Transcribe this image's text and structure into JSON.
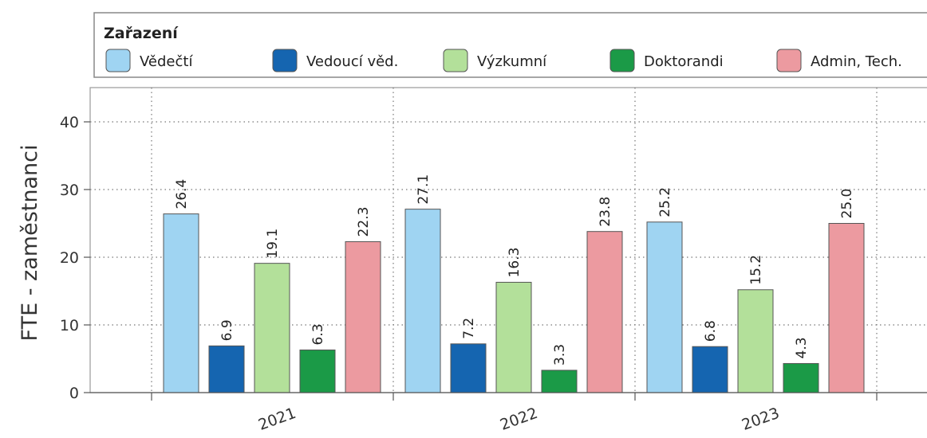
{
  "chart_data": {
    "type": "bar",
    "categories": [
      "2021",
      "2022",
      "2023"
    ],
    "ylabel": "FTE - zaměstnanci",
    "ylim": [
      0,
      45
    ],
    "yticks": [
      0,
      10,
      20,
      30,
      40
    ],
    "grid": true,
    "legend": {
      "title": "Zařazení",
      "placement": "top"
    },
    "series": [
      {
        "name": "Vědečtí",
        "color": "#9fd4f2",
        "values": [
          26.4,
          27.1,
          25.2
        ],
        "labels": [
          "26.4",
          "27.1",
          "25.2"
        ]
      },
      {
        "name": "Vedoucí věd.",
        "color": "#1565b0",
        "values": [
          6.9,
          7.2,
          6.8
        ],
        "labels": [
          "6.9",
          "7.2",
          "6.8"
        ]
      },
      {
        "name": "Výzkumní",
        "color": "#b3e09a",
        "values": [
          19.1,
          16.3,
          15.2
        ],
        "labels": [
          "19.1",
          "16.3",
          "15.2"
        ]
      },
      {
        "name": "Doktorandi",
        "color": "#1b9a47",
        "values": [
          6.3,
          3.3,
          4.3
        ],
        "labels": [
          "6.3",
          "3.3",
          "4.3"
        ]
      },
      {
        "name": "Admin, Tech.",
        "color": "#ec9aa0",
        "values": [
          22.3,
          23.8,
          25.0
        ],
        "labels": [
          "22.3",
          "23.8",
          "25.0"
        ]
      }
    ]
  }
}
